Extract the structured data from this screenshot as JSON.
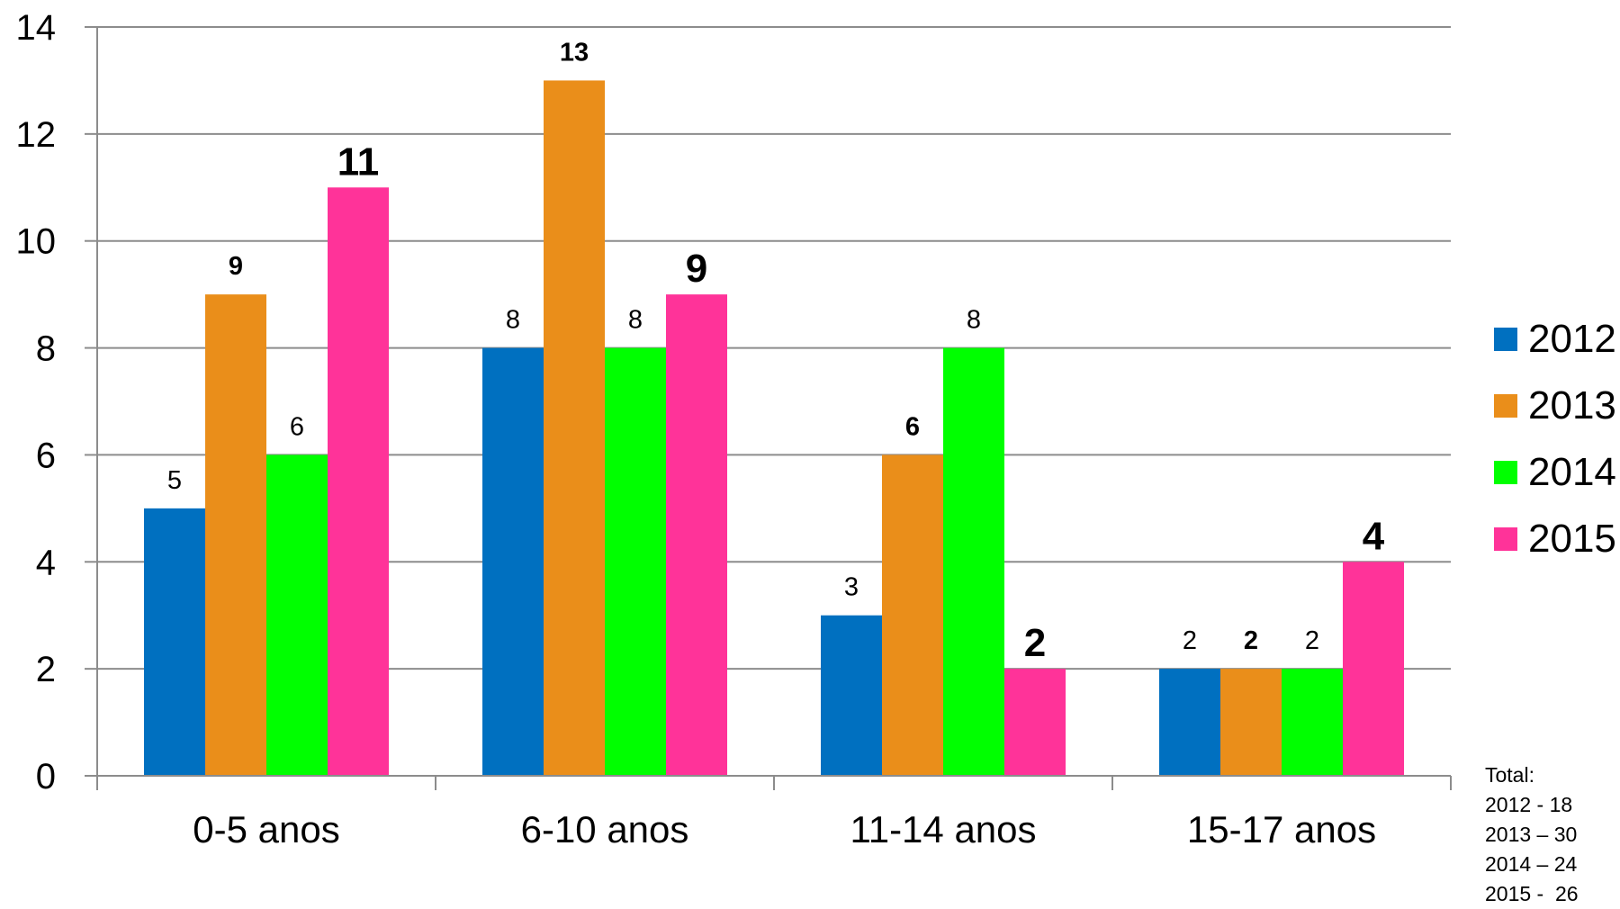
{
  "chart_data": {
    "type": "bar",
    "categories": [
      "0-5 anos",
      "6-10 anos",
      "11-14 anos",
      "15-17 anos"
    ],
    "series": [
      {
        "name": "2012",
        "color": "#0070C0",
        "values": [
          5,
          8,
          3,
          2
        ],
        "labels": [
          "5",
          "8",
          "3",
          "2"
        ],
        "label_bold": [
          false,
          false,
          false,
          false
        ],
        "label_size": [
          "medium",
          "medium",
          "medium",
          "medium"
        ]
      },
      {
        "name": "2013",
        "color": "#EA8E1A",
        "values": [
          9,
          13,
          6,
          2
        ],
        "labels": [
          "9",
          "13",
          "6",
          "2"
        ],
        "label_bold": [
          true,
          true,
          true,
          true
        ],
        "label_size": [
          "medium",
          "medium",
          "medium",
          "medium"
        ]
      },
      {
        "name": "2014",
        "color": "#00FF00",
        "values": [
          6,
          8,
          8,
          2
        ],
        "labels": [
          "6",
          "8",
          "8",
          "2"
        ],
        "label_bold": [
          false,
          false,
          false,
          false
        ],
        "label_size": [
          "medium",
          "medium",
          "medium",
          "medium"
        ]
      },
      {
        "name": "2015",
        "color": "#FF3399",
        "values": [
          11,
          9,
          2,
          4
        ],
        "labels": [
          "11",
          "9",
          "2",
          "4"
        ],
        "label_bold": [
          true,
          true,
          true,
          true
        ],
        "label_size": [
          "large",
          "large",
          "large",
          "large"
        ]
      }
    ],
    "yticks": [
      "0",
      "2",
      "4",
      "6",
      "8",
      "10",
      "12",
      "14"
    ],
    "ylim": [
      0,
      14
    ],
    "title": "",
    "xlabel": "",
    "ylabel": "",
    "grid": true,
    "legend_position": "right"
  },
  "notes": {
    "total_title": "Total:",
    "lines": [
      "2012 - 18",
      "2013 – 30",
      "2014 – 24",
      "2015 -  26"
    ]
  }
}
